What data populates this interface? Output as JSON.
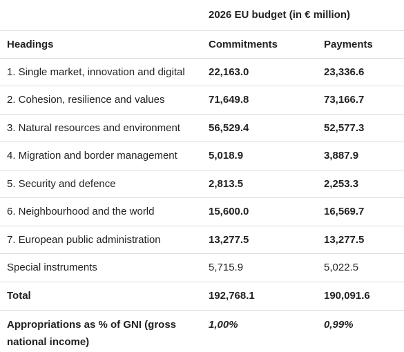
{
  "table": {
    "budget_header": "2026 EU budget (in € million)",
    "col_headings": "Headings",
    "col_commitments": "Commitments",
    "col_payments": "Payments",
    "rows": [
      {
        "heading": "1. Single market, innovation and digital",
        "commitments": "22,163.0",
        "payments": "23,336.6"
      },
      {
        "heading": "2. Cohesion, resilience and values",
        "commitments": "71,649.8",
        "payments": "73,166.7"
      },
      {
        "heading": "3. Natural resources and environment",
        "commitments": "56,529.4",
        "payments": "52,577.3"
      },
      {
        "heading": "4. Migration and border management",
        "commitments": "5,018.9",
        "payments": "3,887.9"
      },
      {
        "heading": "5. Security and defence",
        "commitments": "2,813.5",
        "payments": "2,253.3"
      },
      {
        "heading": "6. Neighbourhood and the world",
        "commitments": "15,600.0",
        "payments": "16,569.7"
      },
      {
        "heading": "7. European public administration",
        "commitments": "13,277.5",
        "payments": "13,277.5"
      },
      {
        "heading": "Special instruments",
        "commitments": "5,715.9",
        "payments": "5,022.5"
      }
    ],
    "total": {
      "heading": "Total",
      "commitments": "192,768.1",
      "payments": "190,091.6"
    },
    "appropriations": {
      "heading": "Appropriations as % of GNI (gross national income)",
      "commitments": "1,00%",
      "payments": "0,99%"
    }
  }
}
